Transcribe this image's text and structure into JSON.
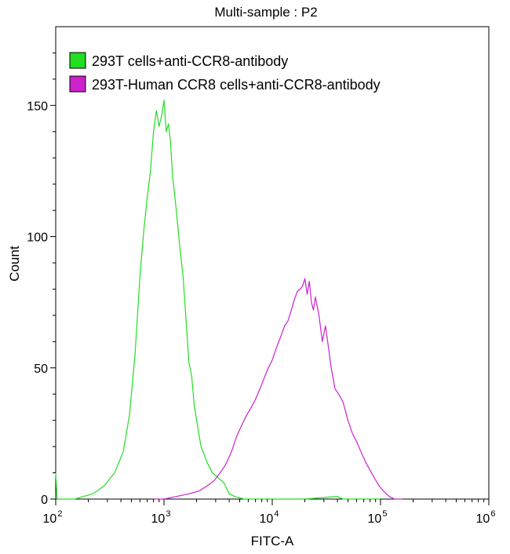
{
  "chart_data": {
    "type": "line",
    "title": "Multi-sample : P2",
    "xlabel": "FITC-A",
    "ylabel": "Count",
    "x_scale": "log",
    "xlim": [
      100,
      1000000
    ],
    "ylim": [
      0,
      180
    ],
    "y_ticks": [
      "0",
      "50",
      "100",
      "150"
    ],
    "x_ticks": [
      {
        "base": "10",
        "exp": "2",
        "value": 100
      },
      {
        "base": "10",
        "exp": "3",
        "value": 1000
      },
      {
        "base": "10",
        "exp": "4",
        "value": 10000
      },
      {
        "base": "10",
        "exp": "5",
        "value": 100000
      },
      {
        "base": "10",
        "exp": "6",
        "value": 1000000
      }
    ],
    "legend_position": "top-left",
    "grid": false,
    "series": [
      {
        "name": "293T cells+anti-CCR8-antibody",
        "color": "#22dd22",
        "points": [
          [
            100,
            10
          ],
          [
            103,
            0
          ],
          [
            150,
            0
          ],
          [
            180,
            1
          ],
          [
            220,
            2
          ],
          [
            280,
            5
          ],
          [
            350,
            10
          ],
          [
            420,
            18
          ],
          [
            480,
            32
          ],
          [
            540,
            55
          ],
          [
            600,
            85
          ],
          [
            650,
            102
          ],
          [
            700,
            115
          ],
          [
            750,
            125
          ],
          [
            800,
            140
          ],
          [
            850,
            148
          ],
          [
            900,
            142
          ],
          [
            950,
            146
          ],
          [
            1000,
            152
          ],
          [
            1050,
            140
          ],
          [
            1100,
            143
          ],
          [
            1150,
            136
          ],
          [
            1200,
            123
          ],
          [
            1300,
            110
          ],
          [
            1400,
            96
          ],
          [
            1500,
            85
          ],
          [
            1600,
            68
          ],
          [
            1700,
            52
          ],
          [
            1800,
            47
          ],
          [
            1900,
            36
          ],
          [
            2000,
            30
          ],
          [
            2200,
            20
          ],
          [
            2500,
            14
          ],
          [
            2800,
            10
          ],
          [
            3200,
            8
          ],
          [
            3600,
            6
          ],
          [
            4000,
            2
          ],
          [
            4500,
            1
          ],
          [
            5500,
            0
          ],
          [
            20000,
            0
          ],
          [
            40000,
            1
          ],
          [
            45000,
            0
          ],
          [
            100000,
            0
          ]
        ]
      },
      {
        "name": "293T-Human CCR8 cells+anti-CCR8-antibody",
        "color": "#cc22cc",
        "points": [
          [
            800,
            0
          ],
          [
            1000,
            0
          ],
          [
            1300,
            1
          ],
          [
            1700,
            2
          ],
          [
            2100,
            3
          ],
          [
            2500,
            5
          ],
          [
            2900,
            7
          ],
          [
            3300,
            10
          ],
          [
            3700,
            13
          ],
          [
            4200,
            18
          ],
          [
            4700,
            24
          ],
          [
            5200,
            28
          ],
          [
            5800,
            32
          ],
          [
            6400,
            35
          ],
          [
            7000,
            38
          ],
          [
            7700,
            42
          ],
          [
            8400,
            46
          ],
          [
            9200,
            50
          ],
          [
            10000,
            53
          ],
          [
            11000,
            58
          ],
          [
            12000,
            62
          ],
          [
            13000,
            66
          ],
          [
            14000,
            68
          ],
          [
            15000,
            72
          ],
          [
            16000,
            76
          ],
          [
            17000,
            79
          ],
          [
            18000,
            80
          ],
          [
            19000,
            81
          ],
          [
            20000,
            84
          ],
          [
            21000,
            78
          ],
          [
            22000,
            83
          ],
          [
            23000,
            75
          ],
          [
            24000,
            72
          ],
          [
            25000,
            77
          ],
          [
            27000,
            70
          ],
          [
            29000,
            60
          ],
          [
            31000,
            66
          ],
          [
            33000,
            58
          ],
          [
            35000,
            50
          ],
          [
            38000,
            42
          ],
          [
            41000,
            40
          ],
          [
            45000,
            37
          ],
          [
            50000,
            30
          ],
          [
            55000,
            25
          ],
          [
            60000,
            22
          ],
          [
            66000,
            18
          ],
          [
            73000,
            14
          ],
          [
            80000,
            11
          ],
          [
            88000,
            8
          ],
          [
            97000,
            5
          ],
          [
            107000,
            3
          ],
          [
            120000,
            1
          ],
          [
            135000,
            0
          ],
          [
            160000,
            0
          ]
        ]
      }
    ]
  }
}
